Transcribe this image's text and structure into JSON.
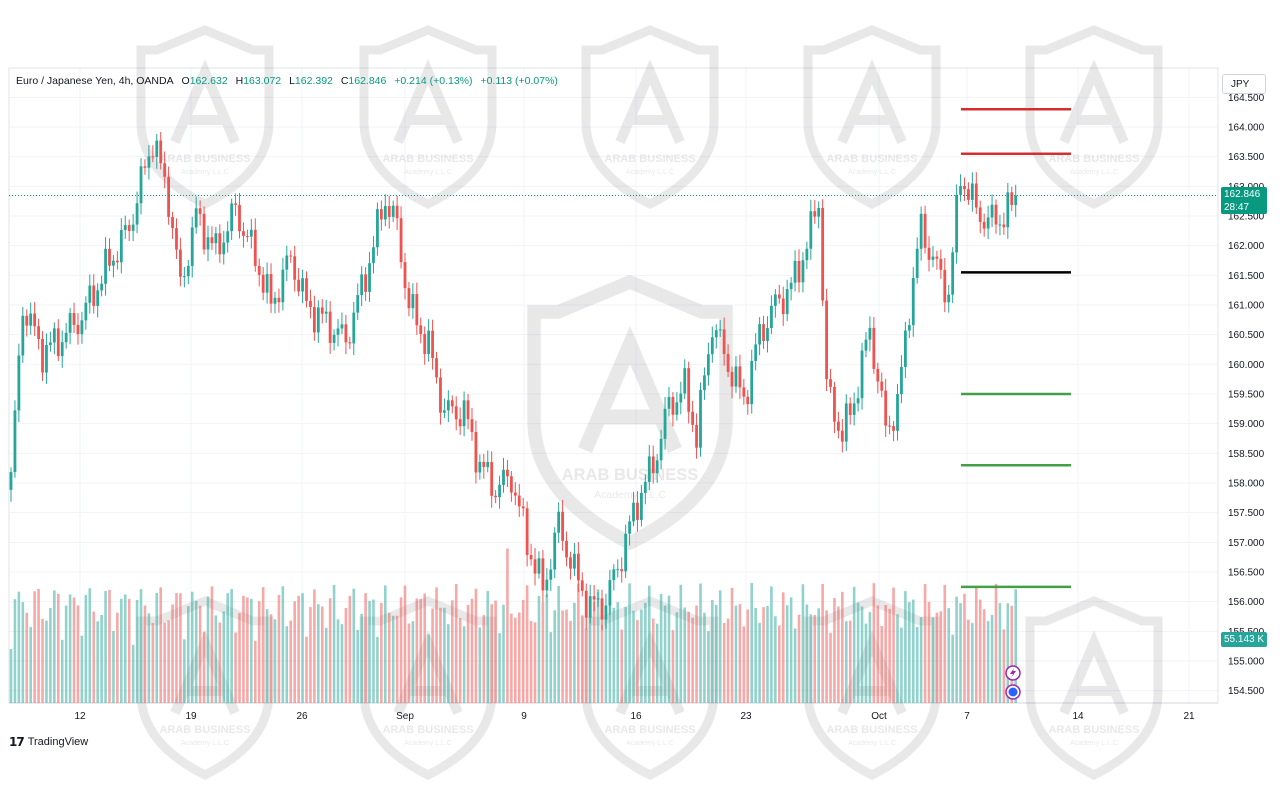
{
  "header": {
    "symbol": "Euro / Japanese Yen, 4h, OANDA",
    "open_label": "O",
    "open": "162.632",
    "high_label": "H",
    "high": "163.072",
    "low_label": "L",
    "low": "162.392",
    "close_label": "C",
    "close": "162.846",
    "change": "+0.214 (+0.13%)",
    "change2": "+0.113 (+0.07%)"
  },
  "currency_button": "JPY",
  "last_price": {
    "price": "162.846",
    "countdown": "28:47"
  },
  "volume_tag": "55.143 K",
  "footer": {
    "brand": "TradingView"
  },
  "watermark": {
    "text": "ARAB BUSINESS",
    "subtext": "Academy L.L.C"
  },
  "colors": {
    "up": "#26a69a",
    "down": "#ef5350",
    "resistance": "#d32f2f",
    "support": "#43a047",
    "pivot": "#000000",
    "last_price": "#089981"
  },
  "chart_data": {
    "type": "candlestick",
    "timeframe": "4h",
    "y_ticks": [
      "164.500",
      "164.000",
      "163.500",
      "163.000",
      "162.500",
      "162.000",
      "161.500",
      "161.000",
      "160.500",
      "160.000",
      "159.500",
      "159.000",
      "158.500",
      "158.000",
      "157.500",
      "157.000",
      "156.500",
      "156.000",
      "155.500",
      "155.000",
      "154.500"
    ],
    "x_ticks": [
      "12",
      "19",
      "26",
      "Sep",
      "9",
      "16",
      "23",
      "Oct",
      "7",
      "14",
      "21"
    ],
    "ylim": [
      154.3,
      164.8
    ],
    "price_path": [
      {
        "i": 0,
        "p": 158.1
      },
      {
        "i": 3,
        "p": 161.0
      },
      {
        "i": 8,
        "p": 160.2
      },
      {
        "i": 12,
        "p": 160.4
      },
      {
        "i": 18,
        "p": 160.8
      },
      {
        "i": 24,
        "p": 161.6
      },
      {
        "i": 30,
        "p": 162.3
      },
      {
        "i": 36,
        "p": 163.8
      },
      {
        "i": 40,
        "p": 162.8
      },
      {
        "i": 43,
        "p": 161.3
      },
      {
        "i": 47,
        "p": 162.5
      },
      {
        "i": 52,
        "p": 161.9
      },
      {
        "i": 57,
        "p": 162.6
      },
      {
        "i": 62,
        "p": 161.8
      },
      {
        "i": 66,
        "p": 161.0
      },
      {
        "i": 71,
        "p": 161.8
      },
      {
        "i": 75,
        "p": 161.0
      },
      {
        "i": 80,
        "p": 160.7
      },
      {
        "i": 85,
        "p": 160.4
      },
      {
        "i": 90,
        "p": 161.5
      },
      {
        "i": 95,
        "p": 162.8
      },
      {
        "i": 98,
        "p": 162.3
      },
      {
        "i": 101,
        "p": 161.0
      },
      {
        "i": 106,
        "p": 160.3
      },
      {
        "i": 110,
        "p": 159.2
      },
      {
        "i": 115,
        "p": 159.2
      },
      {
        "i": 119,
        "p": 158.3
      },
      {
        "i": 123,
        "p": 157.9
      },
      {
        "i": 127,
        "p": 158.1
      },
      {
        "i": 131,
        "p": 157.0
      },
      {
        "i": 135,
        "p": 156.2
      },
      {
        "i": 139,
        "p": 157.3
      },
      {
        "i": 143,
        "p": 156.5
      },
      {
        "i": 147,
        "p": 155.9
      },
      {
        "i": 151,
        "p": 156.0
      },
      {
        "i": 155,
        "p": 156.8
      },
      {
        "i": 159,
        "p": 157.7
      },
      {
        "i": 163,
        "p": 158.3
      },
      {
        "i": 167,
        "p": 159.3
      },
      {
        "i": 171,
        "p": 159.6
      },
      {
        "i": 174,
        "p": 158.8
      },
      {
        "i": 178,
        "p": 160.7
      },
      {
        "i": 182,
        "p": 160.0
      },
      {
        "i": 186,
        "p": 159.4
      },
      {
        "i": 190,
        "p": 160.5
      },
      {
        "i": 194,
        "p": 161.0
      },
      {
        "i": 198,
        "p": 161.3
      },
      {
        "i": 202,
        "p": 162.0
      },
      {
        "i": 205,
        "p": 162.8
      },
      {
        "i": 207,
        "p": 159.6
      },
      {
        "i": 211,
        "p": 158.8
      },
      {
        "i": 214,
        "p": 159.4
      },
      {
        "i": 218,
        "p": 160.6
      },
      {
        "i": 222,
        "p": 158.9
      },
      {
        "i": 225,
        "p": 159.3
      },
      {
        "i": 228,
        "p": 161.0
      },
      {
        "i": 231,
        "p": 162.3
      },
      {
        "i": 235,
        "p": 161.6
      },
      {
        "i": 238,
        "p": 161.2
      },
      {
        "i": 241,
        "p": 163.2
      },
      {
        "i": 245,
        "p": 162.6
      },
      {
        "i": 248,
        "p": 162.4
      },
      {
        "i": 252,
        "p": 162.5
      },
      {
        "i": 255,
        "p": 162.75
      }
    ],
    "last_close": 162.846,
    "horizontal_levels": [
      {
        "price": 164.3,
        "kind": "resistance"
      },
      {
        "price": 163.55,
        "kind": "resistance"
      },
      {
        "price": 161.55,
        "kind": "pivot"
      },
      {
        "price": 159.5,
        "kind": "support"
      },
      {
        "price": 158.3,
        "kind": "support"
      },
      {
        "price": 156.25,
        "kind": "support"
      }
    ]
  }
}
